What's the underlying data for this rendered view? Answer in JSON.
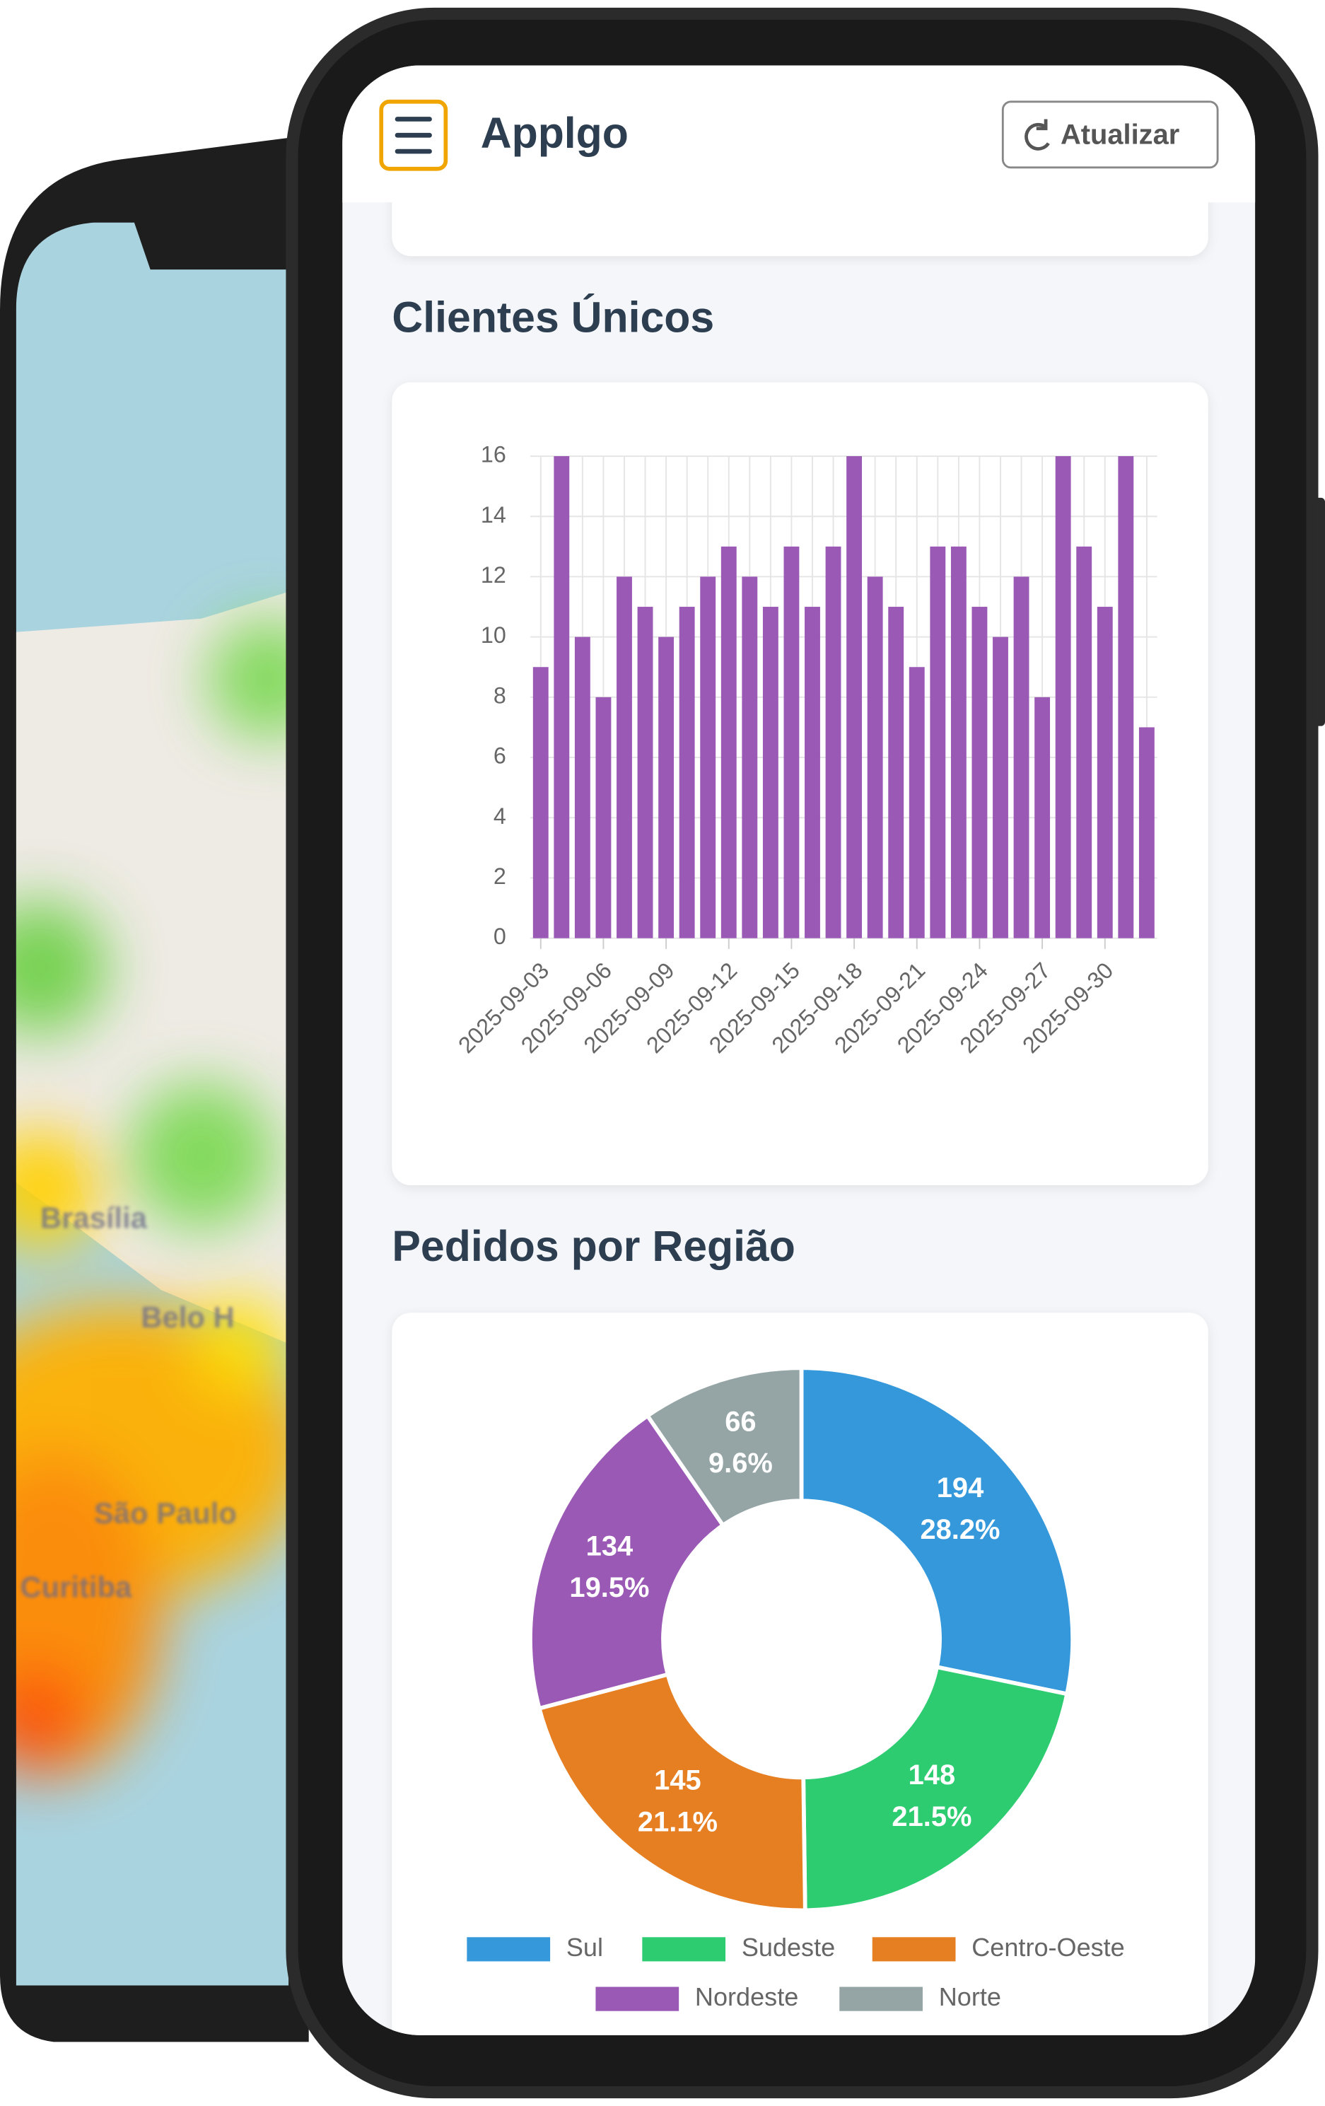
{
  "header": {
    "title": "Applgo",
    "button": "Atualizar"
  },
  "background_map": {
    "labels": [
      "Brasília",
      "Belo H",
      "São Paulo",
      "Curitiba"
    ]
  },
  "chart_data": [
    {
      "type": "bar",
      "title": "Clientes Únicos",
      "categories": [
        "2025-09-03",
        null,
        null,
        "2025-09-06",
        null,
        null,
        "2025-09-09",
        null,
        null,
        "2025-09-12",
        null,
        null,
        "2025-09-15",
        null,
        null,
        "2025-09-18",
        null,
        null,
        "2025-09-21",
        null,
        null,
        "2025-09-24",
        null,
        null,
        "2025-09-27",
        null,
        null,
        "2025-09-30",
        null,
        null
      ],
      "values": [
        9,
        16,
        10,
        8,
        12,
        11,
        10,
        11,
        12,
        13,
        12,
        11,
        13,
        11,
        13,
        16,
        12,
        11,
        9,
        13,
        13,
        11,
        10,
        12,
        8,
        16,
        13,
        11,
        16,
        7
      ],
      "color": "#9b59b6",
      "ylim": [
        0,
        16
      ],
      "yticks": [
        0,
        2,
        4,
        6,
        8,
        10,
        12,
        14,
        16
      ],
      "grid": true
    },
    {
      "type": "doughnut",
      "title": "Pedidos por Região",
      "categories": [
        "Sul",
        "Sudeste",
        "Centro-Oeste",
        "Nordeste",
        "Norte"
      ],
      "values": [
        194,
        148,
        145,
        134,
        66
      ],
      "value_labels": [
        "28.2%",
        "21.5%",
        "21.1%",
        "19.5%",
        "9.6%"
      ],
      "colors": [
        "#3498db",
        "#2ecc71",
        "#e67e22",
        "#9b59b6",
        "#95a5a6"
      ],
      "legend": "bottom"
    }
  ]
}
